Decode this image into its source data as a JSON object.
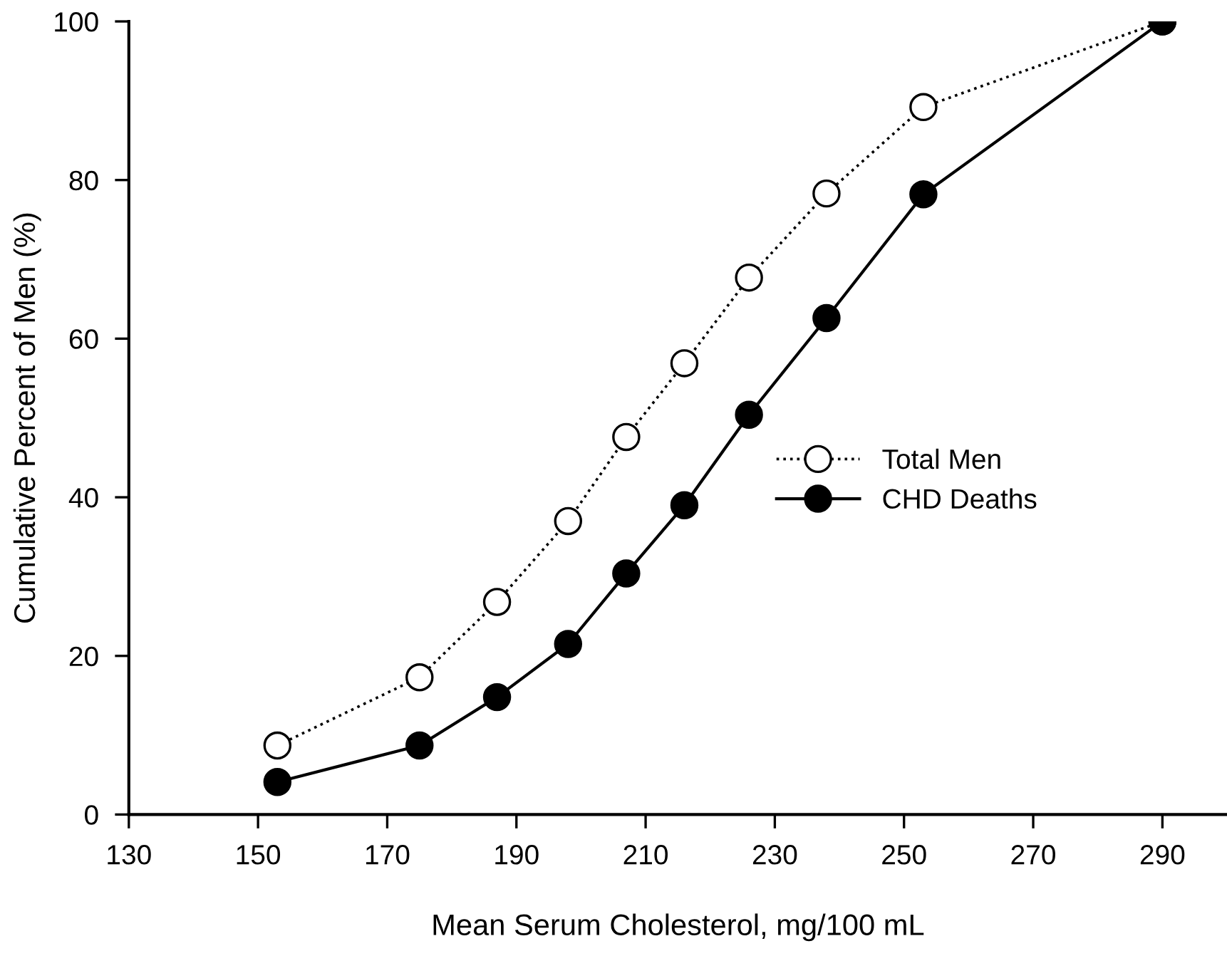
{
  "chart_data": {
    "type": "line",
    "xlabel": "Mean Serum Cholesterol, mg/100 mL",
    "ylabel": "Cumulative Percent of Men (%)",
    "x": [
      153,
      175,
      187,
      198,
      207,
      216,
      226,
      238,
      253,
      290
    ],
    "series": [
      {
        "name": "Total Men",
        "color": "#000000",
        "marker": "circle",
        "line_style": "dotted",
        "values": [
          8.7,
          17.3,
          26.8,
          37.0,
          47.6,
          56.9,
          67.7,
          78.3,
          89.2,
          100
        ]
      },
      {
        "name": "CHD Deaths",
        "color": "#000000",
        "marker": "circle",
        "line_style": "solid",
        "values": [
          4.1,
          8.7,
          14.8,
          21.5,
          30.4,
          39.0,
          50.4,
          62.6,
          78.2,
          100
        ]
      }
    ],
    "xlim": [
      130,
      300
    ],
    "xticks": [
      130,
      150,
      170,
      190,
      210,
      230,
      250,
      270,
      290
    ],
    "ylim": [
      0,
      100
    ],
    "yticks": [
      0,
      20,
      40,
      60,
      80,
      100
    ],
    "grid": false,
    "legend": "right"
  }
}
